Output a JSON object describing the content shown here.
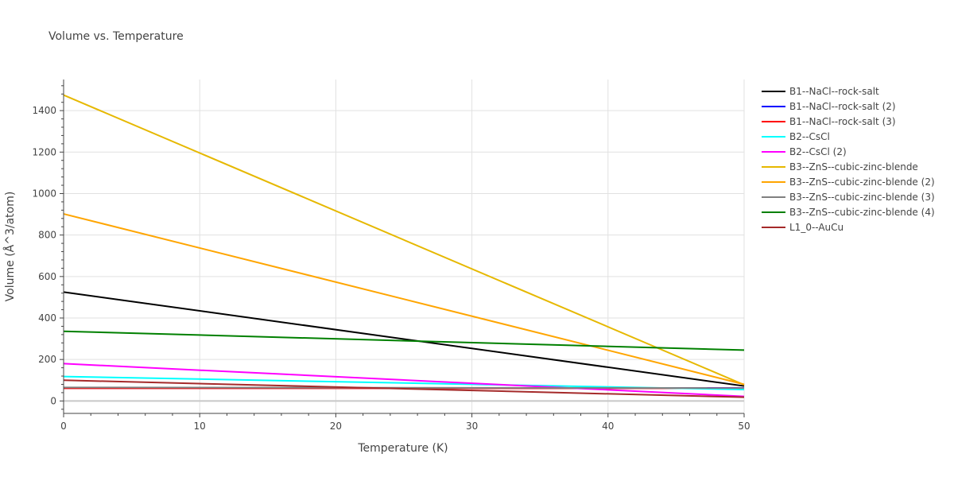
{
  "chart_data": {
    "type": "line",
    "title": "Volume vs. Temperature",
    "xlabel": "Temperature (K)",
    "ylabel": "Volume (Å^3/atom)",
    "xlim": [
      0,
      50
    ],
    "ylim": [
      -60,
      1550
    ],
    "xticks": [
      0,
      10,
      20,
      30,
      40,
      50
    ],
    "yticks": [
      0,
      200,
      400,
      600,
      800,
      1000,
      1200,
      1400
    ],
    "grid": true,
    "legend_position": "top-right-outside",
    "series": [
      {
        "name": "B1--NaCl--rock-salt",
        "color": "#000000",
        "x": [
          0,
          50
        ],
        "y": [
          525,
          72
        ]
      },
      {
        "name": "B1--NaCl--rock-salt (2)",
        "color": "#0000ff",
        "x": [
          0,
          50
        ],
        "y": [
          62,
          62
        ]
      },
      {
        "name": "B1--NaCl--rock-salt (3)",
        "color": "#ff0000",
        "x": [
          0,
          50
        ],
        "y": [
          61,
          61
        ]
      },
      {
        "name": "B2--CsCl",
        "color": "#00ffff",
        "x": [
          0,
          50
        ],
        "y": [
          118,
          55
        ]
      },
      {
        "name": "B2--CsCl (2)",
        "color": "#ff00ff",
        "x": [
          0,
          50
        ],
        "y": [
          180,
          22
        ]
      },
      {
        "name": "B3--ZnS--cubic-zinc-blende",
        "color": "#e6b800",
        "x": [
          0,
          50
        ],
        "y": [
          1475,
          78
        ]
      },
      {
        "name": "B3--ZnS--cubic-zinc-blende (2)",
        "color": "#ffa500",
        "x": [
          0,
          50
        ],
        "y": [
          902,
          80
        ]
      },
      {
        "name": "B3--ZnS--cubic-zinc-blende (3)",
        "color": "#808080",
        "x": [
          0,
          50
        ],
        "y": [
          65,
          62
        ]
      },
      {
        "name": "B3--ZnS--cubic-zinc-blende (4)",
        "color": "#008000",
        "x": [
          0,
          50
        ],
        "y": [
          336,
          245
        ]
      },
      {
        "name": "L1_0--AuCu",
        "color": "#a52a2a",
        "x": [
          0,
          50
        ],
        "y": [
          100,
          18
        ]
      }
    ]
  }
}
